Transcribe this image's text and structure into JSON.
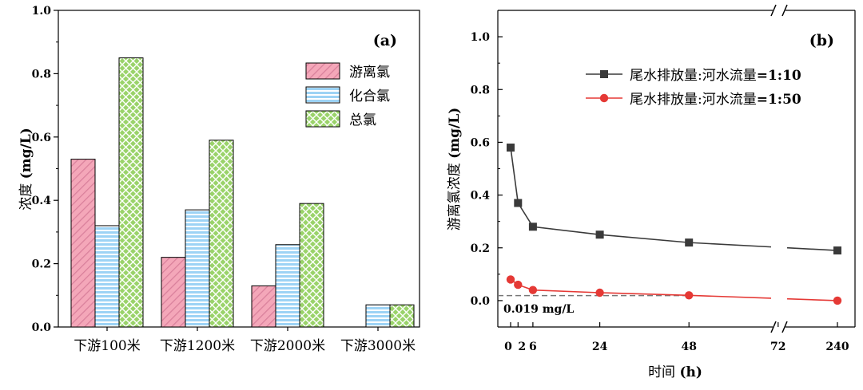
{
  "chart_data": [
    {
      "type": "bar",
      "panel_label": "(a)",
      "ylabel_cn": "浓度",
      "ylabel_unit": "(mg/L)",
      "ylim": [
        0,
        1.0
      ],
      "yticks": [
        "0.0",
        "0.2",
        "0.4",
        "0.6",
        "0.8",
        "1.0"
      ],
      "categories": [
        "下游100米",
        "下游1200米",
        "下游2000米",
        "下游3000米"
      ],
      "series": [
        {
          "name": "游离氯",
          "color": "#f4a7b9",
          "values": [
            0.53,
            0.22,
            0.13,
            0
          ]
        },
        {
          "name": "化合氯",
          "color": "#9dd3f5",
          "values": [
            0.32,
            0.37,
            0.26,
            0.07
          ]
        },
        {
          "name": "总氯",
          "color": "#9ad36a",
          "values": [
            0.85,
            0.59,
            0.39,
            0.07
          ]
        }
      ]
    },
    {
      "type": "line",
      "panel_label": "(b)",
      "ylabel_cn": "游离氯浓度",
      "ylabel_unit": "(mg/L)",
      "xlabel_cn": "时间",
      "xlabel_unit": "(h)",
      "ylim": [
        -0.1,
        1.1
      ],
      "yticks": [
        "0.0",
        "0.2",
        "0.4",
        "0.6",
        "0.8",
        "1.0"
      ],
      "xticks": [
        "0",
        "2",
        "6",
        "24",
        "48",
        "72",
        "240"
      ],
      "axis_break": "between 72 and 240",
      "series": [
        {
          "name_cn": "尾水排放量:河水流量",
          "ratio": "=1:10",
          "color": "#3a3a3a",
          "marker": "square",
          "x": [
            0,
            2,
            6,
            24,
            48,
            240
          ],
          "y": [
            0.58,
            0.37,
            0.28,
            0.25,
            0.22,
            0.19
          ]
        },
        {
          "name_cn": "尾水排放量:河水流量",
          "ratio": "=1:50",
          "color": "#e53935",
          "marker": "circle",
          "x": [
            0,
            2,
            6,
            24,
            48,
            240
          ],
          "y": [
            0.08,
            0.06,
            0.04,
            0.03,
            0.02,
            0.0
          ]
        }
      ],
      "reference_line": {
        "value": 0.019,
        "label": "0.019 mg/L"
      }
    }
  ]
}
